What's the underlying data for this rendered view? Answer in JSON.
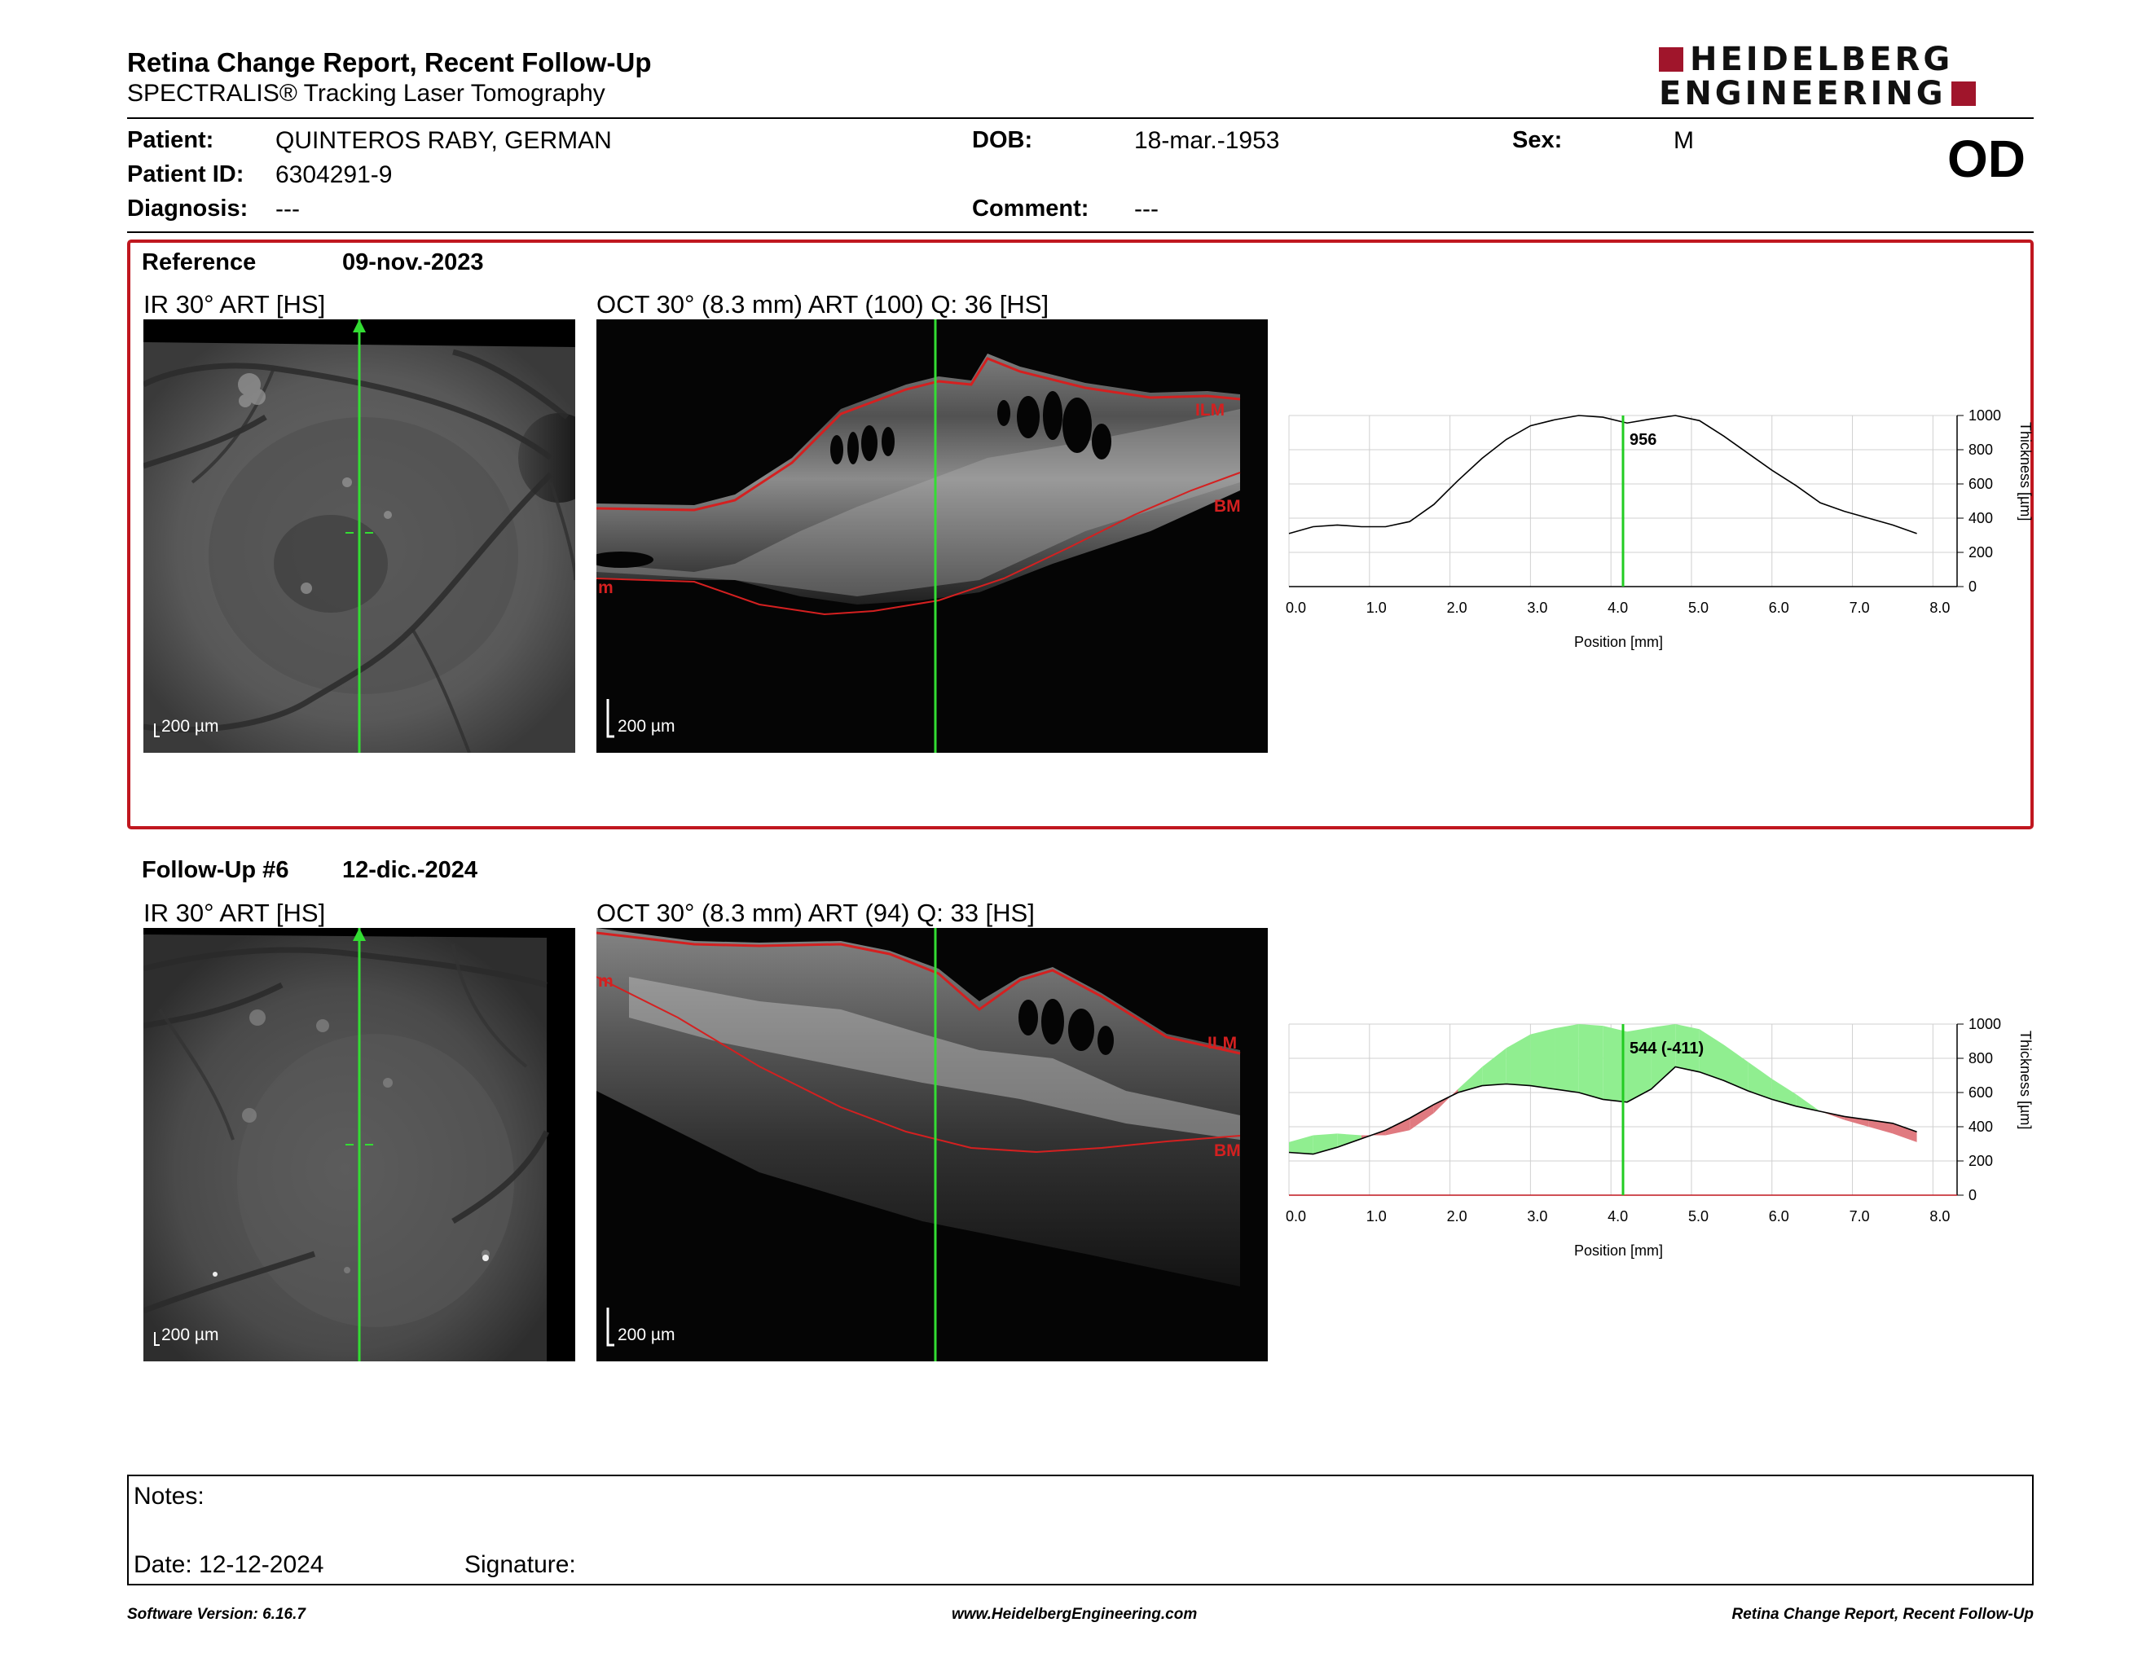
{
  "header": {
    "title": "Retina Change Report, Recent Follow-Up",
    "subtitle": "SPECTRALIS® Tracking Laser Tomography",
    "logo_line1": "HEIDELBERG",
    "logo_line2": "ENGINEERING",
    "brand_color": "#a0152b"
  },
  "patient": {
    "patient_label": "Patient:",
    "patient_value": "QUINTEROS RABY, GERMAN",
    "id_label": "Patient ID:",
    "id_value": "6304291-9",
    "diagnosis_label": "Diagnosis:",
    "diagnosis_value": "---",
    "dob_label": "DOB:",
    "dob_value": "18-mar.-1953",
    "comment_label": "Comment:",
    "comment_value": "---",
    "sex_label": "Sex:",
    "sex_value": "M",
    "eye": "OD"
  },
  "reference": {
    "label": "Reference",
    "date": "09-nov.-2023",
    "ir_title": "IR 30° ART [HS]",
    "oct_title": "OCT 30° (8.3 mm) ART (100) Q: 36 [HS]",
    "scale_ir": "200 µm",
    "scale_oct": "200 µm",
    "ilm": "ILM",
    "bm": "BM",
    "edge_label": "m",
    "marker_value": "956"
  },
  "followup": {
    "label": "Follow-Up #6",
    "date": "12-dic.-2024",
    "ir_title": "IR 30° ART [HS]",
    "oct_title": "OCT 30° (8.3 mm) ART (94) Q: 33 [HS]",
    "scale_ir": "200 µm",
    "scale_oct": "200 µm",
    "ilm": "ILM",
    "bm": "BM",
    "edge_label": "m",
    "marker_value": "544 (-411)"
  },
  "chart_common": {
    "xlabel": "Position [mm]",
    "ylabel": "Thickness [µm]",
    "x_ticks": [
      "0.0",
      "1.0",
      "2.0",
      "3.0",
      "4.0",
      "5.0",
      "6.0",
      "7.0",
      "8.0"
    ],
    "y_ticks": [
      "0",
      "200",
      "400",
      "600",
      "800",
      "1000"
    ]
  },
  "chart_data": [
    {
      "type": "line",
      "xlabel": "Position [mm]",
      "ylabel": "Thickness [µm]",
      "xlim": [
        0,
        8.3
      ],
      "ylim": [
        0,
        1000
      ],
      "grid": true,
      "marker_x": 4.15,
      "series": [
        {
          "x": [
            0.0,
            0.3,
            0.6,
            0.9,
            1.2,
            1.5,
            1.8,
            2.1,
            2.4,
            2.7,
            3.0,
            3.3,
            3.6,
            3.9,
            4.2,
            4.5,
            4.8,
            5.1,
            5.4,
            5.7,
            6.0,
            6.3,
            6.6,
            6.9,
            7.2,
            7.5,
            7.8
          ],
          "y": [
            310,
            350,
            360,
            350,
            350,
            380,
            480,
            620,
            750,
            860,
            940,
            975,
            1000,
            990,
            956,
            980,
            1010,
            970,
            880,
            780,
            680,
            590,
            490,
            440,
            400,
            360,
            310
          ]
        }
      ]
    },
    {
      "type": "area",
      "xlabel": "Position [mm]",
      "ylabel": "Thickness [µm]",
      "xlim": [
        0,
        8.3
      ],
      "ylim": [
        0,
        1000
      ],
      "grid": true,
      "marker_x": 4.15,
      "series": [
        {
          "x": [
            0.0,
            0.3,
            0.6,
            0.9,
            1.2,
            1.5,
            1.8,
            2.1,
            2.4,
            2.7,
            3.0,
            3.3,
            3.6,
            3.9,
            4.2,
            4.5,
            4.8,
            5.1,
            5.4,
            5.7,
            6.0,
            6.3,
            6.6,
            6.9,
            7.2,
            7.5,
            7.8
          ],
          "y": [
            310,
            350,
            360,
            350,
            350,
            380,
            480,
            620,
            750,
            860,
            940,
            975,
            1000,
            990,
            956,
            980,
            1010,
            970,
            880,
            780,
            680,
            590,
            490,
            440,
            400,
            360,
            310
          ]
        },
        {
          "x": [
            0.0,
            0.3,
            0.6,
            0.9,
            1.2,
            1.5,
            1.8,
            2.1,
            2.4,
            2.7,
            3.0,
            3.3,
            3.6,
            3.9,
            4.2,
            4.5,
            4.8,
            5.1,
            5.4,
            5.7,
            6.0,
            6.3,
            6.6,
            6.9,
            7.2,
            7.5,
            7.8
          ],
          "y": [
            250,
            240,
            280,
            330,
            380,
            450,
            530,
            600,
            640,
            650,
            640,
            620,
            600,
            560,
            544,
            620,
            750,
            720,
            670,
            610,
            560,
            520,
            490,
            460,
            440,
            420,
            370
          ]
        }
      ],
      "colors": {
        "increase": "#e07a80",
        "decrease": "#90ee90"
      }
    }
  ],
  "notes": {
    "notes_label": "Notes:",
    "date_label": "Date: 12-12-2024",
    "signature_label": "Signature:"
  },
  "footer": {
    "left": "Software Version: 6.16.7",
    "center": "www.HeidelbergEngineering.com",
    "right": "Retina Change Report, Recent Follow-Up"
  }
}
